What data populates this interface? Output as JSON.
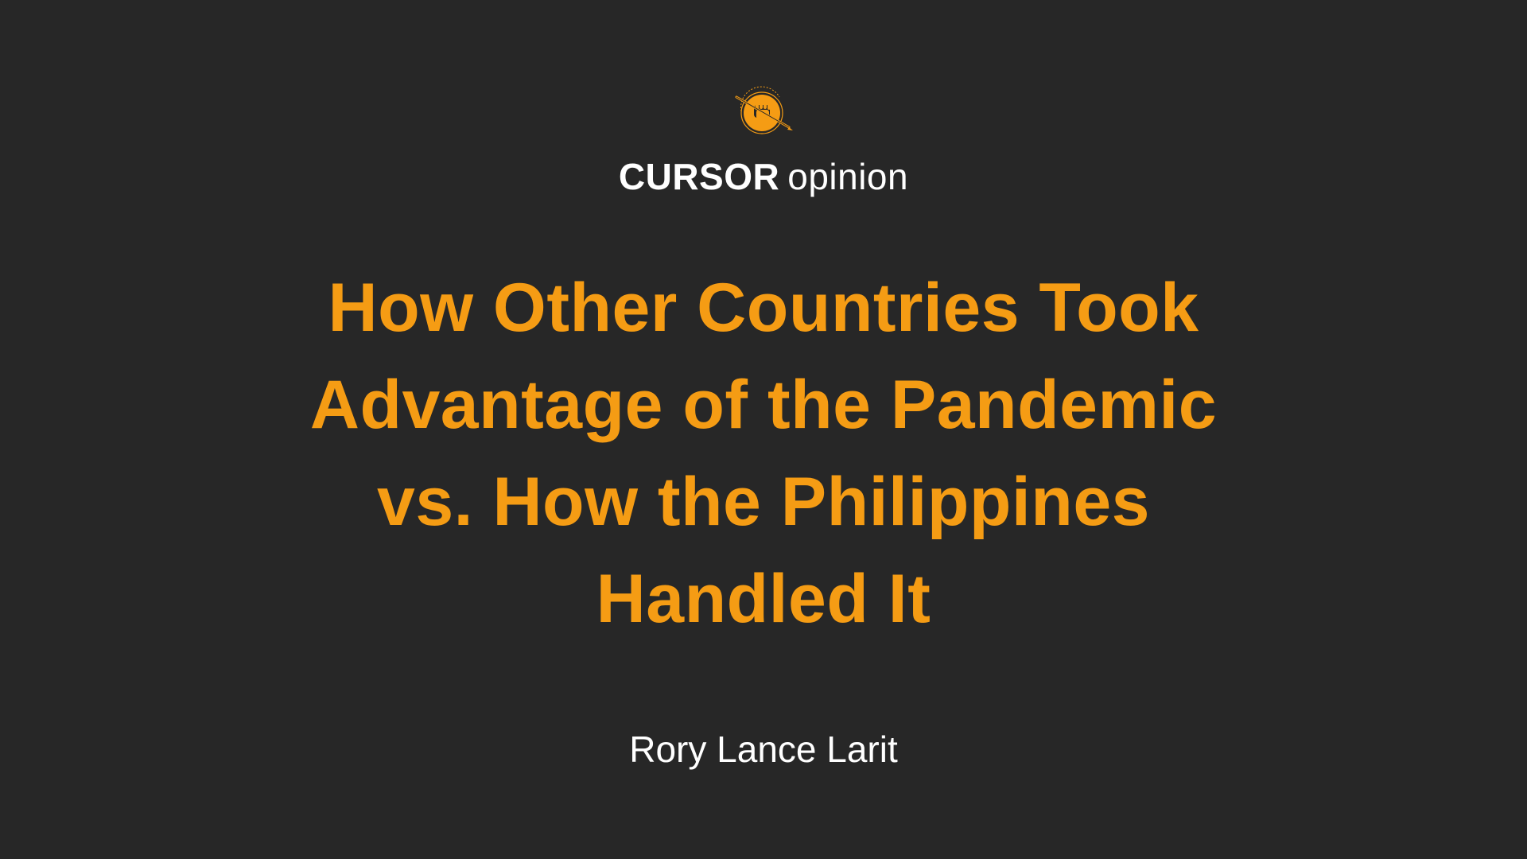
{
  "logo": {
    "name": "cursor-fist-pen-seal",
    "color": "#F59C14"
  },
  "brand": {
    "name": "CURSOR",
    "section": "opinion"
  },
  "headline": {
    "lines": [
      "How Other Countries Took",
      "Advantage of the Pandemic",
      "vs. How the Philippines",
      "Handled It"
    ]
  },
  "author": "Rory Lance Larit",
  "colors": {
    "background": "#272727",
    "accent": "#F59C14",
    "text": "#FFFFFF"
  }
}
